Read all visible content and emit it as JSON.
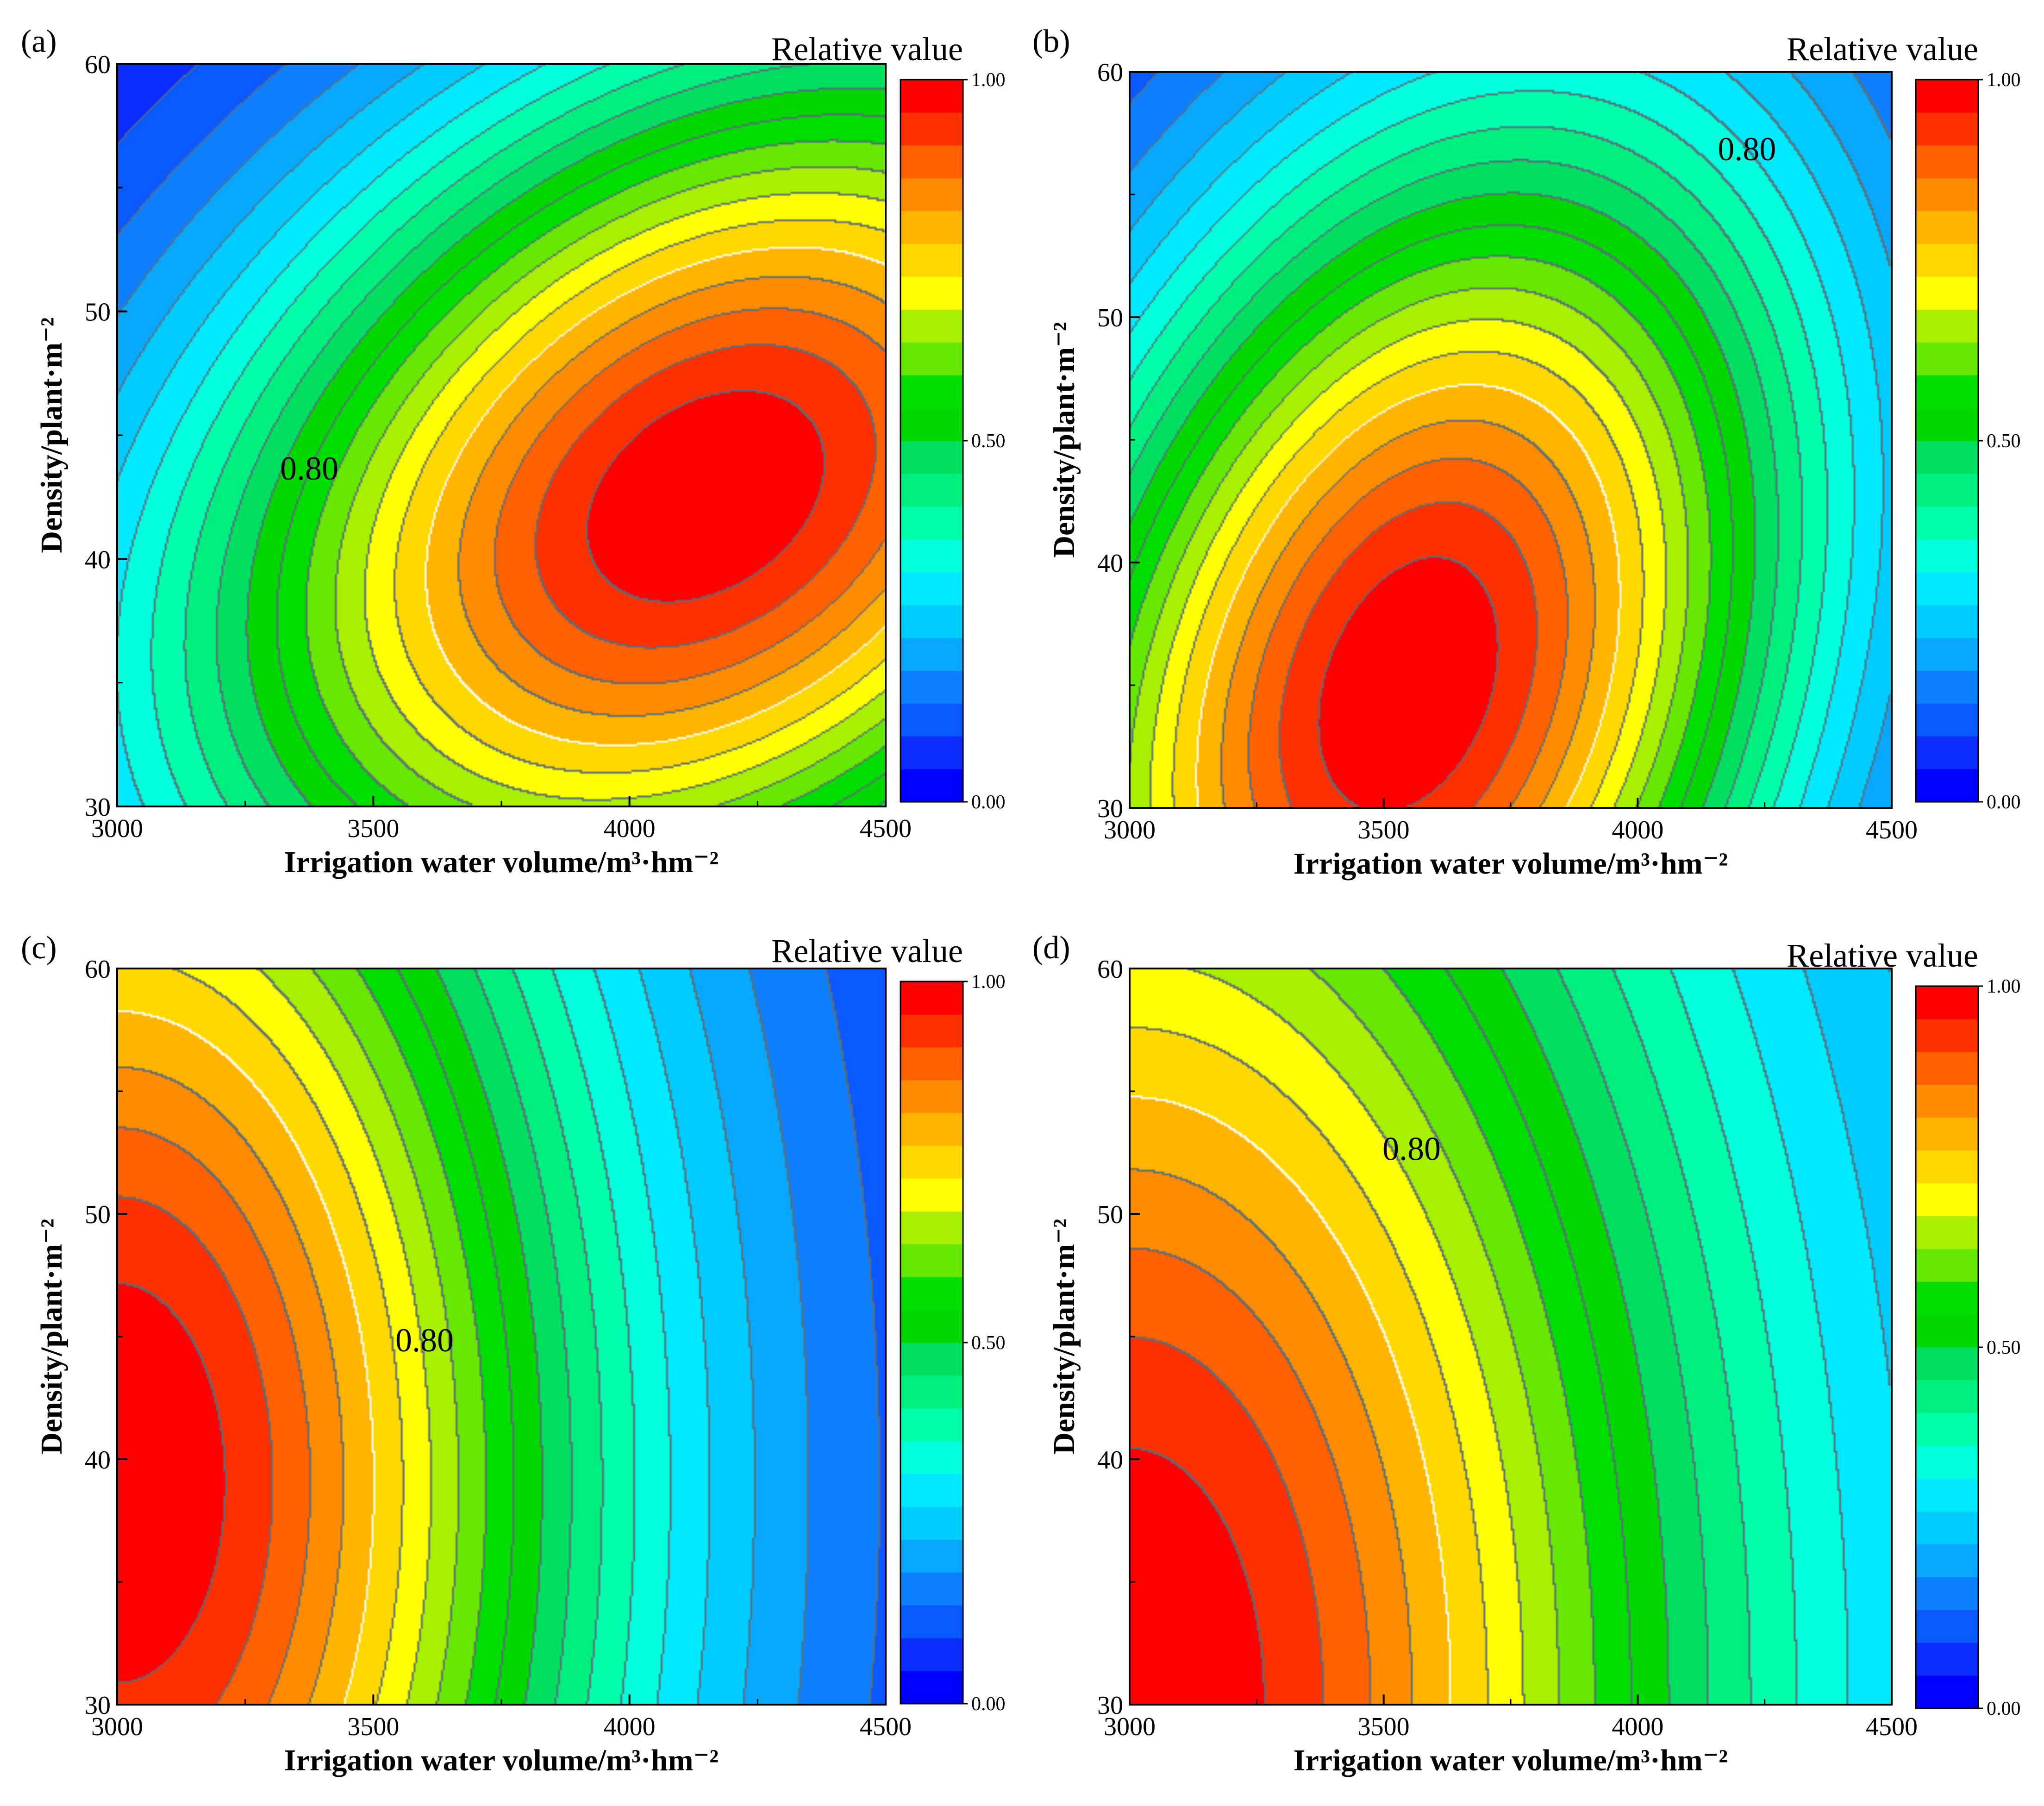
{
  "chart_data": [
    {
      "panel": "(a)",
      "type": "heatmap",
      "subtype": "filled-contour",
      "xlabel": "Irrigation water volume/m³·hm⁻²",
      "ylabel": "Density/plant·m⁻²",
      "xlim": [
        3000,
        4500
      ],
      "ylim": [
        30,
        60
      ],
      "xticks": [
        3000,
        3500,
        4000,
        4500
      ],
      "yticks": [
        30,
        40,
        50,
        60
      ],
      "colorbar_title": "Relative value",
      "colorbar_ticks": [
        "0.00",
        "0.50",
        "1.00"
      ],
      "contour_label": "0.80",
      "peak": {
        "x": 4150,
        "y": 42.5,
        "value": 1.0
      },
      "surface": {
        "x0": 4150,
        "y0": 42.5,
        "sx": 760,
        "sy": 14,
        "rho": 0.32,
        "floor": 0.0
      }
    },
    {
      "panel": "(b)",
      "type": "heatmap",
      "subtype": "filled-contour",
      "xlabel": "Irrigation water volume/m³·hm⁻²",
      "ylabel": "Density/plant·m⁻²",
      "xlim": [
        3000,
        4500
      ],
      "ylim": [
        30,
        60
      ],
      "xticks": [
        3000,
        3500,
        4000,
        4500
      ],
      "yticks": [
        30,
        40,
        50,
        60
      ],
      "colorbar_title": "Relative value",
      "colorbar_ticks": [
        "0.00",
        "0.50",
        "1.00"
      ],
      "contour_label": "0.80",
      "peak": {
        "x": 3550,
        "y": 35,
        "value": 1.0
      },
      "surface": {
        "x0": 3550,
        "y0": 35,
        "sx": 580,
        "sy": 17,
        "rho": 0.3,
        "floor": 0.0
      }
    },
    {
      "panel": "(c)",
      "type": "heatmap",
      "subtype": "filled-contour",
      "xlabel": "Irrigation water volume/m³·hm⁻²",
      "ylabel": "Density/plant·m⁻²",
      "xlim": [
        3000,
        4500
      ],
      "ylim": [
        30,
        60
      ],
      "xticks": [
        3000,
        3500,
        4000,
        4500
      ],
      "yticks": [
        30,
        40,
        50,
        60
      ],
      "colorbar_title": "Relative value",
      "colorbar_ticks": [
        "0.00",
        "0.50",
        "1.00"
      ],
      "contour_label": "0.80",
      "peak": {
        "x": 3000,
        "y": 39,
        "value": 1.0
      },
      "surface": {
        "x0": 3000,
        "y0": 39,
        "sx": 680,
        "sy": 26,
        "rho": 0.0,
        "floor": 0.05
      }
    },
    {
      "panel": "(d)",
      "type": "heatmap",
      "subtype": "filled-contour",
      "xlabel": "Irrigation water volume/m³·hm⁻²",
      "ylabel": "Density/plant·m⁻²",
      "xlim": [
        3000,
        4500
      ],
      "ylim": [
        30,
        60
      ],
      "xticks": [
        3000,
        3500,
        4000,
        4500
      ],
      "yticks": [
        30,
        40,
        50,
        60
      ],
      "colorbar_title": "Relative value",
      "colorbar_ticks": [
        "0.00",
        "0.50",
        "1.00"
      ],
      "contour_label": "0.80",
      "peak": {
        "x": 3000,
        "y": 30,
        "value": 1.0
      },
      "surface": {
        "x0": 3000,
        "y0": 30,
        "sx": 820,
        "sy": 32,
        "rho": 0.0,
        "floor": 0.12
      }
    }
  ],
  "colormap": [
    "#0000ff",
    "#0a2cff",
    "#0a58ff",
    "#0e80ff",
    "#08a8ff",
    "#00ccff",
    "#00eaff",
    "#00ffdd",
    "#00ffaa",
    "#00f080",
    "#00e060",
    "#00d800",
    "#00dd00",
    "#66e800",
    "#a8f000",
    "#ffff00",
    "#ffd800",
    "#ffb400",
    "#ff8c00",
    "#ff6000",
    "#ff3000",
    "#ff0000"
  ]
}
